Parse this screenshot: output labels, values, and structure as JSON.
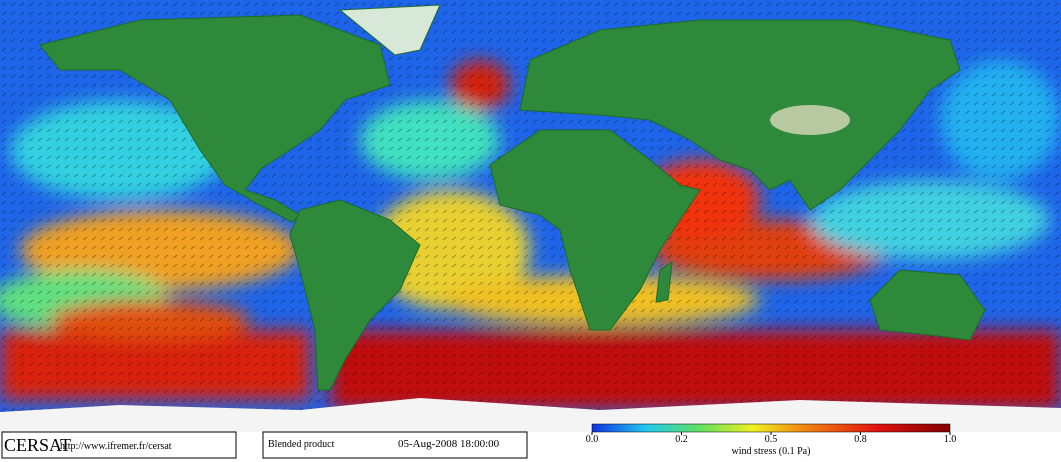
{
  "footer": {
    "logo": "CERSAT",
    "url": "http://www.ifremer.fr/cersat",
    "product": "Blended product",
    "date": "05-Aug-2008 18:00:00"
  },
  "colorbar": {
    "label": "wind stress (0.1 Pa)",
    "ticks": [
      {
        "value": 0,
        "label": "0.0"
      },
      {
        "value": 0.2,
        "label": "0.2"
      },
      {
        "value": 0.5,
        "label": "0.5"
      },
      {
        "value": 0.8,
        "label": "0.8"
      },
      {
        "value": 1,
        "label": "1.0"
      }
    ]
  }
}
